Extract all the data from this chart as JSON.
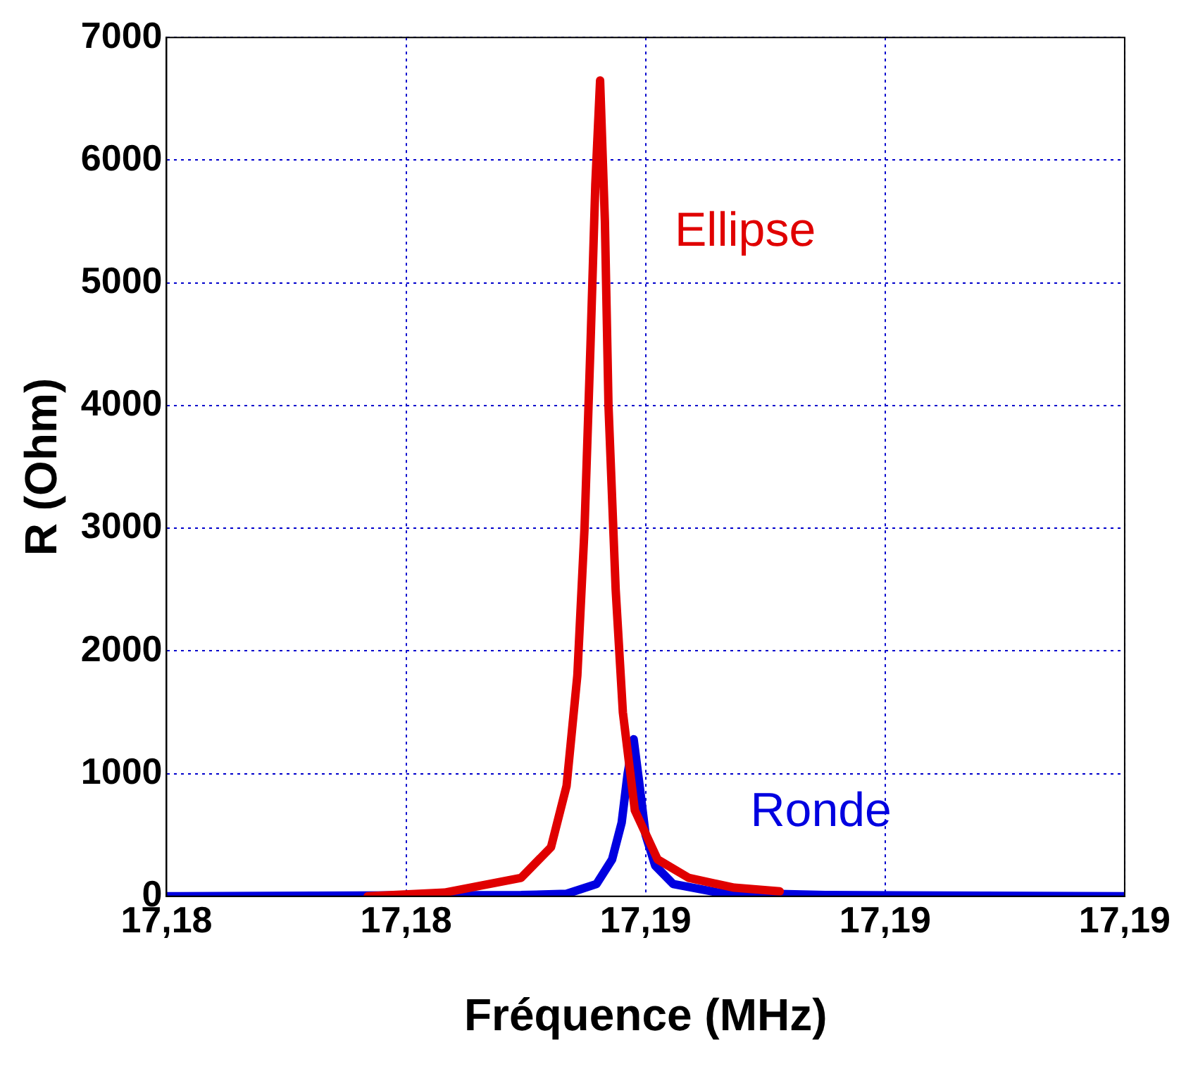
{
  "chart_data": {
    "type": "line",
    "xlabel": "Fréquence (MHz)",
    "ylabel": "R (Ohm)",
    "xlim": [
      17.182,
      17.19
    ],
    "xticks": [
      {
        "value": 17.182,
        "label": "17,18"
      },
      {
        "value": 17.184,
        "label": "17,18"
      },
      {
        "value": 17.186,
        "label": "17,19"
      },
      {
        "value": 17.188,
        "label": "17,19"
      },
      {
        "value": 17.19,
        "label": "17,19"
      }
    ],
    "ylim": [
      0,
      7000
    ],
    "yticks": [
      0,
      1000,
      2000,
      3000,
      4000,
      5000,
      6000,
      7000
    ],
    "grid": true,
    "legend": false,
    "marker": "none",
    "line_style": "solid",
    "series": [
      {
        "name": "Ellipse",
        "color": "#e00000",
        "x": [
          17.18368,
          17.18432,
          17.18496,
          17.18521,
          17.18534,
          17.18543,
          17.18549,
          17.18554,
          17.18558,
          17.18562,
          17.18566,
          17.18569,
          17.18575,
          17.18581,
          17.18591,
          17.1861,
          17.18636,
          17.18674,
          17.18712
        ],
        "values": [
          0,
          30,
          150,
          400,
          900,
          1800,
          3000,
          4500,
          5800,
          6650,
          5500,
          4000,
          2500,
          1500,
          700,
          300,
          150,
          70,
          40
        ]
      },
      {
        "name": "Ronde",
        "color": "#0000e0",
        "x": [
          17.182,
          17.18496,
          17.18534,
          17.18559,
          17.18572,
          17.1858,
          17.18585,
          17.1859,
          17.18595,
          17.186,
          17.18608,
          17.18623,
          17.18661,
          17.1875,
          17.19
        ],
        "values": [
          0,
          10,
          20,
          100,
          300,
          600,
          1000,
          1280,
          900,
          500,
          250,
          100,
          30,
          10,
          0
        ]
      }
    ]
  }
}
